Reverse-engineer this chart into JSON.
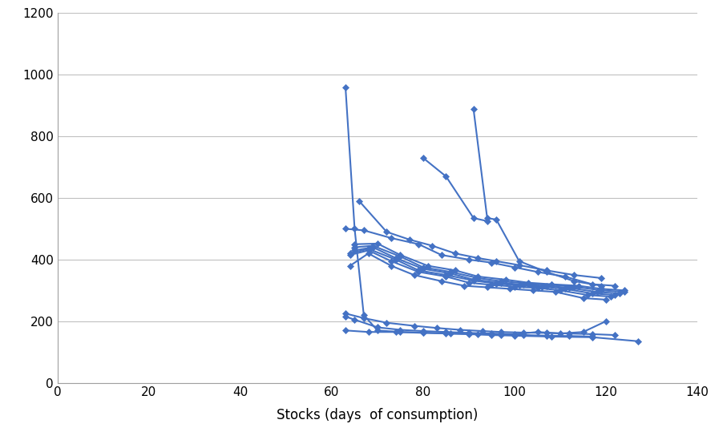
{
  "series": [
    {
      "x": [
        63,
        65,
        67,
        70,
        75,
        80,
        85,
        90,
        95,
        100,
        108,
        117,
        127
      ],
      "y": [
        960,
        500,
        220,
        170,
        165,
        163,
        160,
        158,
        155,
        153,
        150,
        148,
        135
      ]
    },
    {
      "x": [
        63,
        65,
        70,
        75,
        80,
        85,
        90,
        95,
        100,
        105,
        110,
        115,
        120
      ],
      "y": [
        215,
        205,
        180,
        172,
        168,
        165,
        162,
        160,
        158,
        165,
        160,
        165,
        200
      ]
    },
    {
      "x": [
        63,
        67,
        72,
        78,
        83,
        88,
        93,
        97,
        102,
        107,
        112,
        117,
        122
      ],
      "y": [
        225,
        210,
        195,
        185,
        178,
        172,
        168,
        165,
        163,
        162,
        160,
        158,
        155
      ]
    },
    {
      "x": [
        64,
        68,
        73,
        78,
        84,
        89,
        94,
        99,
        104,
        109,
        115,
        120
      ],
      "y": [
        380,
        420,
        380,
        350,
        330,
        315,
        310,
        305,
        300,
        295,
        275,
        270
      ]
    },
    {
      "x": [
        64,
        68,
        73,
        79,
        85,
        90,
        95,
        100,
        105,
        110,
        116,
        121
      ],
      "y": [
        415,
        430,
        395,
        360,
        345,
        325,
        318,
        312,
        308,
        300,
        285,
        280
      ]
    },
    {
      "x": [
        64,
        68,
        74,
        79,
        85,
        91,
        96,
        101,
        106,
        111,
        117,
        122
      ],
      "y": [
        420,
        435,
        400,
        365,
        350,
        332,
        322,
        316,
        312,
        305,
        290,
        285
      ]
    },
    {
      "x": [
        65,
        69,
        74,
        80,
        86,
        91,
        97,
        102,
        107,
        112,
        118,
        123
      ],
      "y": [
        430,
        440,
        405,
        370,
        355,
        335,
        325,
        318,
        315,
        308,
        295,
        290
      ]
    },
    {
      "x": [
        65,
        69,
        75,
        80,
        86,
        92,
        97,
        103,
        108,
        113,
        119,
        124
      ],
      "y": [
        440,
        445,
        410,
        375,
        360,
        340,
        330,
        322,
        318,
        312,
        300,
        295
      ]
    },
    {
      "x": [
        65,
        70,
        75,
        81,
        87,
        92,
        98,
        103,
        108,
        114,
        119,
        124
      ],
      "y": [
        450,
        452,
        415,
        380,
        365,
        345,
        335,
        325,
        320,
        315,
        305,
        300
      ]
    },
    {
      "x": [
        63,
        67,
        73,
        79,
        84,
        90,
        95,
        100,
        105,
        111,
        117,
        122
      ],
      "y": [
        500,
        495,
        470,
        450,
        415,
        400,
        390,
        375,
        360,
        345,
        320,
        315
      ]
    },
    {
      "x": [
        66,
        72,
        77,
        82,
        87,
        92,
        96,
        101,
        107,
        113,
        119
      ],
      "y": [
        590,
        490,
        465,
        445,
        420,
        405,
        395,
        382,
        365,
        350,
        340
      ]
    },
    {
      "x": [
        80,
        85,
        91,
        94
      ],
      "y": [
        730,
        670,
        535,
        525
      ]
    },
    {
      "x": [
        91,
        94,
        96,
        101,
        107,
        113,
        119
      ],
      "y": [
        890,
        535,
        530,
        395,
        360,
        330,
        315
      ]
    },
    {
      "x": [
        63,
        68,
        74,
        80,
        86,
        92,
        97,
        102,
        107,
        112,
        117
      ],
      "y": [
        170,
        165,
        165,
        162,
        160,
        158,
        156,
        155,
        153,
        152,
        150
      ]
    }
  ],
  "xlabel": "Stocks (days  of consumption)",
  "ylabel": "",
  "title": "",
  "xlim": [
    0,
    140
  ],
  "ylim": [
    0,
    1200
  ],
  "xticks": [
    0,
    20,
    40,
    60,
    80,
    100,
    120,
    140
  ],
  "yticks": [
    0,
    200,
    400,
    600,
    800,
    1000,
    1200
  ],
  "line_color": "#4472C4",
  "marker": "D",
  "marker_size": 4,
  "line_width": 1.5,
  "grid_color": "#C0C0C0",
  "background_color": "#FFFFFF",
  "fig_background": "#FFFFFF",
  "xlabel_fontsize": 12,
  "tick_fontsize": 11
}
